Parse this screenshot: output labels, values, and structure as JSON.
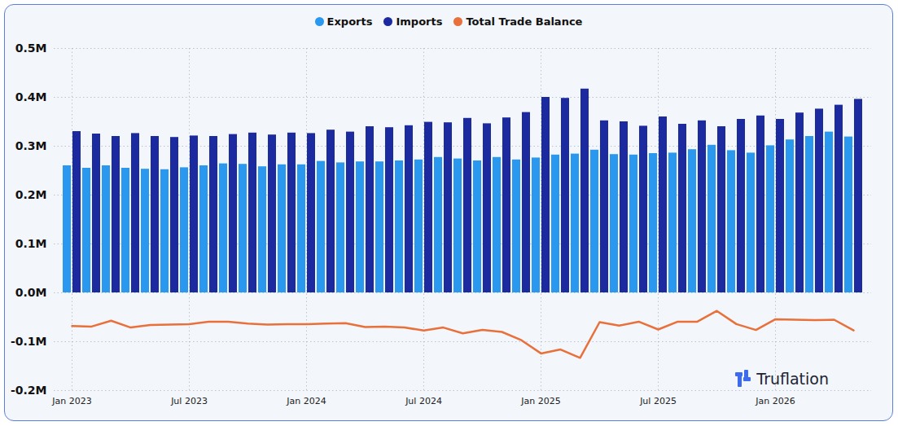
{
  "chart_data": {
    "type": "bar",
    "annotations": [
      "Truflation"
    ],
    "legend": "top",
    "grid": true,
    "x": [
      "2023-01",
      "2023-02",
      "2023-03",
      "2023-04",
      "2023-05",
      "2023-06",
      "2023-07",
      "2023-08",
      "2023-09",
      "2023-10",
      "2023-11",
      "2023-12",
      "2024-01",
      "2024-02",
      "2024-03",
      "2024-04",
      "2024-05",
      "2024-06",
      "2024-07",
      "2024-08",
      "2024-09",
      "2024-10",
      "2024-11",
      "2024-12",
      "2025-01",
      "2025-02",
      "2025-03",
      "2025-04",
      "2025-05",
      "2025-06",
      "2025-07",
      "2025-08",
      "2025-09",
      "2025-10",
      "2025-11",
      "2025-12",
      "2026-01",
      "2026-02",
      "2026-03",
      "2026-04",
      "2026-05"
    ],
    "xticks": [
      {
        "value": "2023-01",
        "label": "Jan 2023"
      },
      {
        "value": "2023-07",
        "label": "Jul 2023"
      },
      {
        "value": "2024-01",
        "label": "Jan 2024"
      },
      {
        "value": "2024-07",
        "label": "Jul 2024"
      },
      {
        "value": "2025-01",
        "label": "Jan 2025"
      },
      {
        "value": "2025-07",
        "label": "Jul 2025"
      },
      {
        "value": "2026-01",
        "label": "Jan 2026"
      }
    ],
    "ylim": [
      -200000,
      500000
    ],
    "yticks": [
      {
        "value": -200000,
        "label": "-0.2M"
      },
      {
        "value": -100000,
        "label": "-0.1M"
      },
      {
        "value": 0,
        "label": "0.0M"
      },
      {
        "value": 100000,
        "label": "0.1M"
      },
      {
        "value": 200000,
        "label": "0.2M"
      },
      {
        "value": 300000,
        "label": "0.3M"
      },
      {
        "value": 400000,
        "label": "0.4M"
      },
      {
        "value": 500000,
        "label": "0.5M"
      }
    ],
    "series": [
      {
        "name": "Exports",
        "type": "bar",
        "color": "#2a98ef",
        "values": [
          260000,
          255000,
          260000,
          255000,
          253000,
          252000,
          256000,
          260000,
          264000,
          263000,
          258000,
          262000,
          262000,
          269000,
          266000,
          268000,
          268000,
          270000,
          272000,
          277000,
          274000,
          270000,
          277000,
          272000,
          276000,
          282000,
          284000,
          292000,
          283000,
          282000,
          285000,
          286000,
          293000,
          302000,
          291000,
          286000,
          301000,
          313000,
          320000,
          329000,
          319000
        ]
      },
      {
        "name": "Imports",
        "type": "bar",
        "color": "#1c2aa0",
        "values": [
          330000,
          325000,
          320000,
          326000,
          320000,
          318000,
          321000,
          320000,
          324000,
          327000,
          323000,
          327000,
          326000,
          333000,
          329000,
          340000,
          338000,
          342000,
          349000,
          348000,
          357000,
          346000,
          358000,
          369000,
          400000,
          398000,
          417000,
          352000,
          350000,
          341000,
          360000,
          345000,
          352000,
          340000,
          355000,
          362000,
          355000,
          368000,
          376000,
          384000,
          396000
        ]
      },
      {
        "name": "Total Trade Balance",
        "type": "line",
        "color": "#e8703a",
        "values": [
          -68000,
          -69000,
          -57000,
          -71000,
          -66000,
          -65000,
          -64000,
          -59000,
          -59000,
          -63000,
          -65000,
          -64000,
          -64000,
          -63000,
          -62000,
          -70000,
          -69000,
          -71000,
          -77000,
          -71000,
          -83000,
          -76000,
          -80000,
          -97000,
          -124000,
          -116000,
          -133000,
          -60000,
          -67000,
          -59000,
          -75000,
          -59000,
          -59000,
          -37000,
          -64000,
          -76000,
          -54000,
          -55000,
          -56000,
          -55000,
          -77000
        ]
      }
    ]
  }
}
